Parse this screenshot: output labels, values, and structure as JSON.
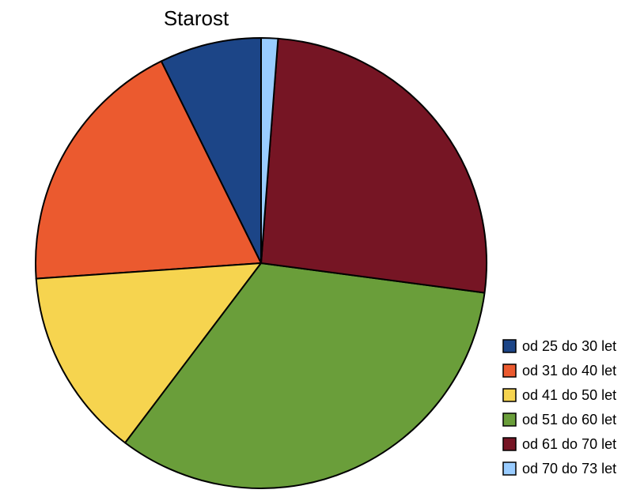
{
  "chart_data": {
    "type": "pie",
    "title": "Starost",
    "categories": [
      "od 25 do 30 let",
      "od 31 do 40 let",
      "od 41 do 50 let",
      "od 51 do 60 let",
      "od 61 do 70 let",
      "od 70 do 73 let"
    ],
    "values": [
      7.3,
      18.8,
      13.6,
      33.2,
      25.9,
      1.2
    ],
    "colors": [
      "#1c4587",
      "#eb5a2f",
      "#f6d44f",
      "#6a9e3a",
      "#761524",
      "#99ccff"
    ],
    "legend": "right"
  }
}
